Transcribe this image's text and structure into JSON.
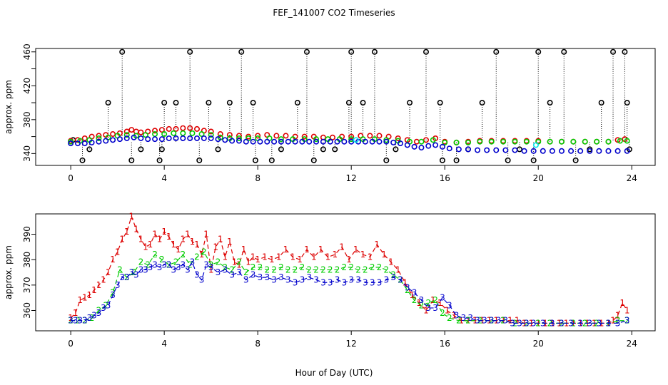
{
  "title": "FEF_141007  CO2 Timeseries",
  "xlabel": "Hour of Day (UTC)",
  "colors": {
    "series1": "#dd0000",
    "series2": "#00cc00",
    "series3": "#0000cc",
    "cyan": "#00e5ee",
    "black": "#000000"
  },
  "chart_data": [
    {
      "type": "scatter",
      "ylabel": "approx. ppm",
      "xlim": [
        -1.5,
        25.0
      ],
      "ylim": [
        326,
        464
      ],
      "xticks": [
        0,
        4,
        8,
        12,
        16,
        20,
        24
      ],
      "yticks": [
        340,
        360,
        380,
        400,
        420,
        440,
        460
      ],
      "ytick_labels": [
        "340",
        "",
        "380",
        "",
        "420",
        "",
        "460"
      ],
      "series": [
        {
          "marker": "circle",
          "color": "#000000",
          "x": [
            0.1,
            0.5,
            0.8,
            1.6,
            2.2,
            2.6,
            3.0,
            3.8,
            3.9,
            4.0,
            4.5,
            5.1,
            5.5,
            5.9,
            6.3,
            6.8,
            7.3,
            7.8,
            7.9,
            8.6,
            9.0,
            9.7,
            10.1,
            10.4,
            10.8,
            11.3,
            11.9,
            12.0,
            12.5,
            13.0,
            13.5,
            13.9,
            14.5,
            15.2,
            15.8,
            15.9,
            16.5,
            17.0,
            17.6,
            18.2,
            18.7,
            19.2,
            19.8,
            20.0,
            20.5,
            21.1,
            21.6,
            22.2,
            22.7,
            23.2,
            23.7,
            23.8,
            23.9
          ],
          "y": [
            356,
            332,
            345,
            400,
            460,
            332,
            345,
            332,
            345,
            400,
            400,
            460,
            332,
            400,
            345,
            400,
            460,
            400,
            332,
            332,
            345,
            400,
            460,
            332,
            345,
            345,
            400,
            460,
            400,
            460,
            332,
            345,
            400,
            460,
            400,
            332,
            332,
            345,
            400,
            460,
            332,
            345,
            332,
            460,
            400,
            460,
            332,
            345,
            400,
            460,
            460,
            400,
            345
          ]
        },
        {
          "marker": "circle",
          "color": "#dd0000",
          "x": [
            0.0,
            0.3,
            0.6,
            0.9,
            1.2,
            1.5,
            1.8,
            2.1,
            2.4,
            2.6,
            2.8,
            3.0,
            3.3,
            3.6,
            3.9,
            4.2,
            4.5,
            4.8,
            5.1,
            5.4,
            5.7,
            6.0,
            6.4,
            6.8,
            7.2,
            7.6,
            8.0,
            8.4,
            8.8,
            9.2,
            9.6,
            10.0,
            10.4,
            10.8,
            11.2,
            11.6,
            12.0,
            12.4,
            12.8,
            13.2,
            13.6,
            14.0,
            14.4,
            14.8,
            15.2,
            15.6,
            16.0,
            16.5,
            17.0,
            17.5,
            18.0,
            18.5,
            19.0,
            19.5,
            20.0,
            20.5,
            21.0,
            21.5,
            22.0,
            22.5,
            23.0,
            23.4,
            23.7
          ],
          "y": [
            355,
            356,
            358,
            360,
            361,
            362,
            363,
            364,
            366,
            368,
            366,
            365,
            366,
            367,
            368,
            369,
            369,
            370,
            370,
            369,
            367,
            366,
            363,
            362,
            361,
            360,
            361,
            362,
            361,
            361,
            360,
            360,
            360,
            359,
            359,
            360,
            360,
            361,
            361,
            361,
            360,
            358,
            356,
            354,
            356,
            358,
            354,
            353,
            354,
            355,
            355,
            355,
            355,
            355,
            355,
            354,
            354,
            354,
            354,
            354,
            354,
            356,
            357
          ]
        },
        {
          "marker": "circle",
          "color": "#00cc00",
          "x": [
            0.0,
            0.4,
            0.8,
            1.2,
            1.6,
            2.0,
            2.4,
            2.8,
            3.2,
            3.6,
            4.0,
            4.4,
            4.8,
            5.2,
            5.6,
            6.0,
            6.4,
            6.8,
            7.2,
            7.6,
            8.0,
            8.5,
            9.0,
            9.5,
            10.0,
            10.5,
            11.0,
            11.5,
            12.0,
            12.5,
            13.0,
            13.5,
            14.0,
            14.5,
            15.0,
            15.5,
            16.0,
            16.5,
            17.0,
            17.5,
            18.0,
            18.5,
            19.0,
            19.5,
            20.0,
            20.5,
            21.0,
            21.5,
            22.0,
            22.5,
            23.0,
            23.5,
            23.8
          ],
          "y": [
            354,
            355,
            356,
            358,
            359,
            361,
            362,
            361,
            362,
            363,
            363,
            364,
            364,
            364,
            363,
            362,
            359,
            358,
            358,
            358,
            358,
            358,
            357,
            357,
            357,
            357,
            357,
            357,
            357,
            357,
            357,
            356,
            355,
            354,
            354,
            356,
            353,
            353,
            353,
            354,
            354,
            354,
            354,
            354,
            354,
            354,
            354,
            354,
            354,
            354,
            354,
            355,
            355
          ]
        },
        {
          "marker": "circle",
          "color": "#0000cc",
          "x": [
            0.0,
            0.3,
            0.6,
            0.9,
            1.2,
            1.5,
            1.8,
            2.1,
            2.4,
            2.7,
            3.0,
            3.3,
            3.6,
            3.9,
            4.2,
            4.5,
            4.8,
            5.1,
            5.4,
            5.7,
            6.0,
            6.3,
            6.6,
            6.9,
            7.2,
            7.5,
            7.8,
            8.1,
            8.4,
            8.7,
            9.0,
            9.3,
            9.6,
            9.9,
            10.2,
            10.5,
            10.8,
            11.1,
            11.4,
            11.7,
            12.0,
            12.3,
            12.6,
            12.9,
            13.2,
            13.5,
            13.8,
            14.1,
            14.4,
            14.7,
            15.0,
            15.3,
            15.6,
            15.9,
            16.2,
            16.6,
            17.0,
            17.4,
            17.8,
            18.2,
            18.6,
            19.0,
            19.4,
            19.8,
            20.2,
            20.6,
            21.0,
            21.4,
            21.8,
            22.2,
            22.6,
            23.0,
            23.4,
            23.8
          ],
          "y": [
            352,
            352,
            352,
            353,
            354,
            355,
            356,
            357,
            358,
            359,
            358,
            357,
            357,
            357,
            358,
            358,
            358,
            358,
            358,
            358,
            358,
            357,
            356,
            355,
            355,
            354,
            354,
            354,
            354,
            354,
            354,
            354,
            354,
            354,
            354,
            354,
            354,
            354,
            354,
            354,
            354,
            354,
            354,
            354,
            354,
            354,
            353,
            352,
            350,
            348,
            347,
            349,
            350,
            348,
            346,
            345,
            345,
            344,
            344,
            344,
            344,
            344,
            343,
            343,
            343,
            343,
            343,
            343,
            343,
            343,
            343,
            343,
            343,
            343
          ]
        },
        {
          "marker": "circle",
          "color": "#00e5ee",
          "x": [
            12.2,
            19.9
          ],
          "y": [
            356,
            350
          ]
        }
      ]
    },
    {
      "type": "line",
      "ylabel": "approx. ppm",
      "xlim": [
        -1.5,
        25.0
      ],
      "ylim": [
        352,
        398
      ],
      "xticks": [
        0,
        4,
        8,
        12,
        16,
        20,
        24
      ],
      "yticks": [
        360,
        370,
        380,
        390
      ],
      "series": [
        {
          "marker": "1",
          "color": "#dd0000",
          "x": [
            0.0,
            0.2,
            0.4,
            0.6,
            0.8,
            1.0,
            1.2,
            1.4,
            1.6,
            1.8,
            2.0,
            2.2,
            2.4,
            2.6,
            2.8,
            3.0,
            3.2,
            3.4,
            3.6,
            3.8,
            4.0,
            4.2,
            4.4,
            4.6,
            4.8,
            5.0,
            5.2,
            5.4,
            5.6,
            5.8,
            6.0,
            6.2,
            6.4,
            6.6,
            6.8,
            7.0,
            7.2,
            7.4,
            7.6,
            7.8,
            8.0,
            8.3,
            8.6,
            8.9,
            9.2,
            9.5,
            9.8,
            10.1,
            10.4,
            10.7,
            11.0,
            11.3,
            11.6,
            11.9,
            12.2,
            12.5,
            12.8,
            13.1,
            13.4,
            13.7,
            14.0,
            14.3,
            14.6,
            14.9,
            15.2,
            15.5,
            15.8,
            16.1,
            16.4,
            16.7,
            17.0,
            17.3,
            17.6,
            17.9,
            18.2,
            18.5,
            18.8,
            19.1,
            19.4,
            19.7,
            20.0,
            20.3,
            20.6,
            20.9,
            21.2,
            21.5,
            21.8,
            22.1,
            22.4,
            22.7,
            23.0,
            23.2,
            23.4,
            23.6,
            23.8
          ],
          "y": [
            357,
            359,
            364,
            365,
            366,
            368,
            370,
            372,
            375,
            380,
            383,
            388,
            391,
            397,
            392,
            388,
            385,
            386,
            390,
            388,
            391,
            389,
            386,
            384,
            388,
            390,
            387,
            386,
            382,
            390,
            376,
            385,
            388,
            381,
            387,
            379,
            378,
            384,
            379,
            381,
            380,
            381,
            380,
            381,
            384,
            381,
            380,
            384,
            381,
            384,
            381,
            382,
            385,
            380,
            384,
            382,
            381,
            386,
            382,
            379,
            376,
            371,
            366,
            363,
            360,
            364,
            363,
            360,
            358,
            356,
            356,
            356,
            356,
            356,
            356,
            356,
            356,
            356,
            355,
            355,
            355,
            355,
            355,
            355,
            355,
            355,
            355,
            355,
            355,
            355,
            355,
            356,
            358,
            363,
            360
          ]
        },
        {
          "marker": "2",
          "color": "#00cc00",
          "x": [
            0.0,
            0.3,
            0.6,
            0.9,
            1.2,
            1.5,
            1.8,
            2.1,
            2.4,
            2.7,
            3.0,
            3.3,
            3.6,
            3.9,
            4.2,
            4.5,
            4.8,
            5.1,
            5.4,
            5.7,
            6.0,
            6.3,
            6.6,
            6.9,
            7.2,
            7.5,
            7.8,
            8.1,
            8.4,
            8.7,
            9.0,
            9.3,
            9.6,
            9.9,
            10.2,
            10.5,
            10.8,
            11.1,
            11.4,
            11.7,
            12.0,
            12.3,
            12.6,
            12.9,
            13.2,
            13.5,
            13.8,
            14.1,
            14.4,
            14.7,
            15.0,
            15.3,
            15.6,
            15.9,
            16.2,
            16.6,
            17.0,
            17.5,
            18.0,
            18.5,
            19.0,
            19.5,
            20.0,
            20.5,
            21.0,
            21.5,
            22.0,
            22.5,
            23.0,
            23.4,
            23.8
          ],
          "y": [
            356,
            356,
            356,
            357,
            360,
            362,
            367,
            376,
            373,
            375,
            379,
            378,
            382,
            380,
            378,
            379,
            382,
            378,
            381,
            383,
            378,
            379,
            377,
            376,
            379,
            375,
            377,
            377,
            376,
            376,
            377,
            376,
            376,
            377,
            376,
            376,
            376,
            376,
            376,
            377,
            377,
            376,
            376,
            377,
            377,
            376,
            374,
            372,
            368,
            364,
            362,
            363,
            364,
            359,
            357,
            356,
            356,
            356,
            356,
            356,
            355,
            355,
            355,
            355,
            355,
            355,
            355,
            355,
            355,
            356,
            356
          ]
        },
        {
          "marker": "3",
          "color": "#0000cc",
          "x": [
            0.0,
            0.2,
            0.4,
            0.6,
            0.8,
            1.0,
            1.2,
            1.4,
            1.6,
            1.8,
            2.0,
            2.2,
            2.4,
            2.6,
            2.8,
            3.0,
            3.2,
            3.4,
            3.6,
            3.8,
            4.0,
            4.2,
            4.4,
            4.6,
            4.8,
            5.0,
            5.2,
            5.4,
            5.6,
            5.8,
            6.0,
            6.3,
            6.6,
            6.9,
            7.2,
            7.5,
            7.8,
            8.1,
            8.4,
            8.7,
            9.0,
            9.3,
            9.6,
            9.9,
            10.2,
            10.5,
            10.8,
            11.1,
            11.4,
            11.7,
            12.0,
            12.3,
            12.6,
            12.9,
            13.2,
            13.5,
            13.8,
            14.1,
            14.4,
            14.7,
            15.0,
            15.3,
            15.6,
            15.9,
            16.2,
            16.5,
            16.8,
            17.1,
            17.4,
            17.7,
            18.0,
            18.3,
            18.6,
            18.9,
            19.2,
            19.5,
            19.8,
            20.2,
            20.6,
            21.0,
            21.4,
            21.8,
            22.2,
            22.6,
            23.0,
            23.4,
            23.8
          ],
          "y": [
            356,
            356,
            356,
            356,
            357,
            358,
            359,
            361,
            362,
            366,
            370,
            373,
            373,
            375,
            374,
            376,
            376,
            377,
            378,
            377,
            378,
            378,
            376,
            377,
            378,
            376,
            379,
            374,
            372,
            378,
            377,
            375,
            376,
            374,
            375,
            372,
            374,
            373,
            373,
            372,
            373,
            372,
            371,
            372,
            373,
            372,
            371,
            371,
            372,
            371,
            372,
            372,
            371,
            371,
            371,
            372,
            373,
            372,
            369,
            367,
            364,
            361,
            361,
            365,
            362,
            358,
            357,
            357,
            356,
            356,
            356,
            356,
            356,
            355,
            355,
            355,
            355,
            355,
            355,
            355,
            355,
            355,
            355,
            355,
            355,
            355,
            356
          ]
        }
      ]
    }
  ]
}
